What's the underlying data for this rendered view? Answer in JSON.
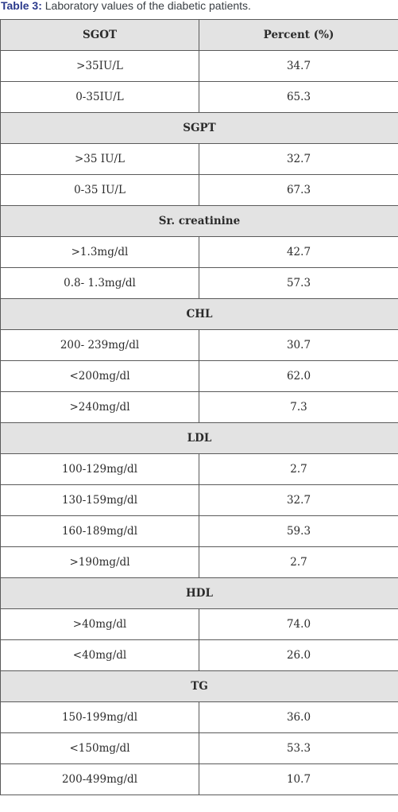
{
  "caption": {
    "label": "Table 3:",
    "text": "Laboratory values of the diabetic patients."
  },
  "table": {
    "header": [
      "SGOT",
      "Percent (%)"
    ],
    "rows": [
      {
        "range": ">35IU/L",
        "percent": "34.7"
      },
      {
        "range": "0-35IU/L",
        "percent": "65.3"
      },
      {
        "section": "SGPT"
      },
      {
        "range": ">35 IU/L",
        "percent": "32.7"
      },
      {
        "range": "0-35 IU/L",
        "percent": "67.3"
      },
      {
        "section": "Sr. creatinine"
      },
      {
        "range": ">1.3mg/dl",
        "percent": "42.7"
      },
      {
        "range": "0.8- 1.3mg/dl",
        "percent": "57.3"
      },
      {
        "section": "CHL"
      },
      {
        "range": "200- 239mg/dl",
        "percent": "30.7"
      },
      {
        "range": "<200mg/dl",
        "percent": "62.0"
      },
      {
        "range": ">240mg/dl",
        "percent": "7.3"
      },
      {
        "section": "LDL"
      },
      {
        "range": "100-129mg/dl",
        "percent": "2.7"
      },
      {
        "range": "130-159mg/dl",
        "percent": "32.7"
      },
      {
        "range": "160-189mg/dl",
        "percent": "59.3"
      },
      {
        "range": ">190mg/dl",
        "percent": "2.7"
      },
      {
        "section": "HDL"
      },
      {
        "range": ">40mg/dl",
        "percent": "74.0"
      },
      {
        "range": "<40mg/dl",
        "percent": "26.0"
      },
      {
        "section": "TG"
      },
      {
        "range": "150-199mg/dl",
        "percent": "36.0"
      },
      {
        "range": "<150mg/dl",
        "percent": "53.3"
      },
      {
        "range": "200-499mg/dl",
        "percent": "10.7"
      }
    ]
  }
}
